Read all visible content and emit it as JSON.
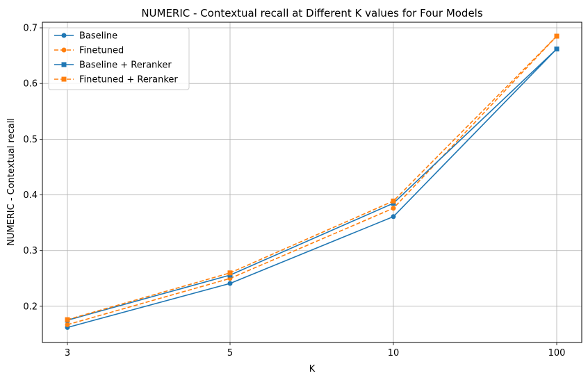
{
  "chart_data": {
    "type": "line",
    "title": "NUMERIC - Contextual recall at Different K values for Four Models",
    "xlabel": "K",
    "ylabel": "NUMERIC - Contextual recall",
    "categories": [
      "3",
      "5",
      "10",
      "100"
    ],
    "ylim": [
      0.135,
      0.71
    ],
    "yticks": [
      0.2,
      0.3,
      0.4,
      0.5,
      0.6,
      0.7
    ],
    "ytick_labels": [
      "0.2",
      "0.3",
      "0.4",
      "0.5",
      "0.6",
      "0.7"
    ],
    "grid": true,
    "legend_position": "top-left",
    "series": [
      {
        "name": "Baseline",
        "values": [
          0.162,
          0.241,
          0.361,
          0.662
        ],
        "color": "#1f77b4",
        "dash": "solid",
        "marker": "circle"
      },
      {
        "name": "Finetuned",
        "values": [
          0.167,
          0.25,
          0.376,
          0.685
        ],
        "color": "#ff7f0e",
        "dash": "dashed",
        "marker": "circle"
      },
      {
        "name": "Baseline + Reranker",
        "values": [
          0.175,
          0.256,
          0.385,
          0.662
        ],
        "color": "#1f77b4",
        "dash": "solid",
        "marker": "square"
      },
      {
        "name": "Finetuned + Reranker",
        "values": [
          0.176,
          0.26,
          0.389,
          0.685
        ],
        "color": "#ff7f0e",
        "dash": "dashed",
        "marker": "square"
      }
    ]
  }
}
